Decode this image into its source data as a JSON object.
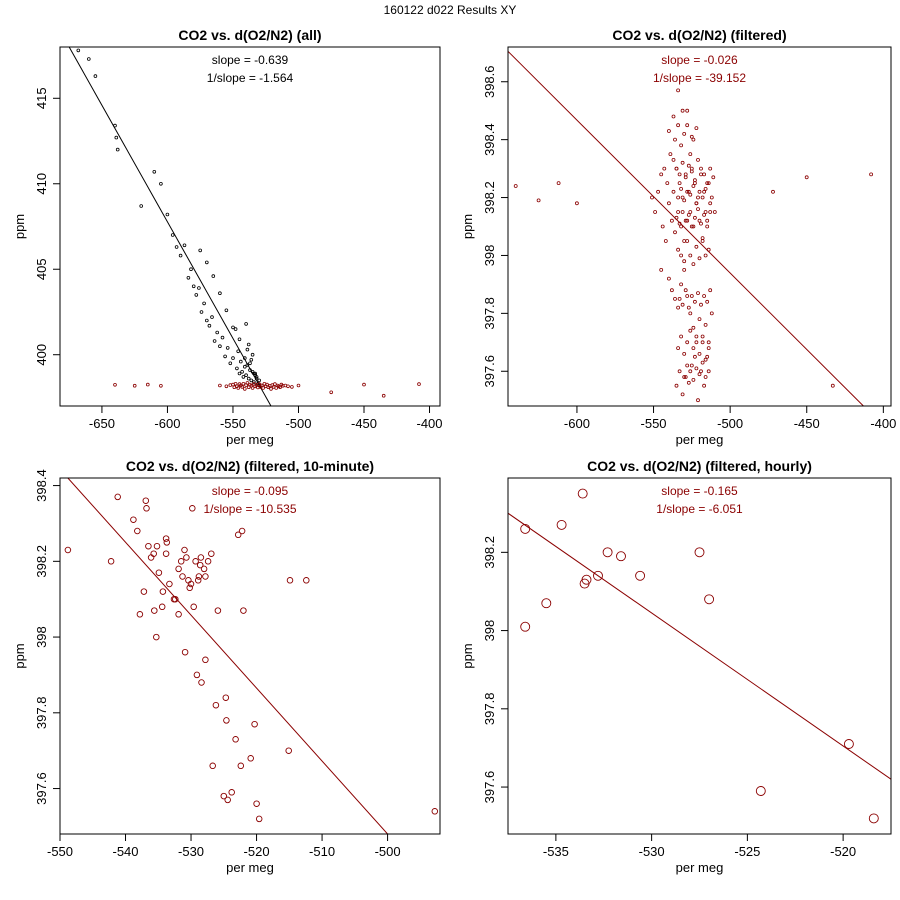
{
  "figure": {
    "suptitle": "160122   d022   Results XY",
    "colors": {
      "all_points": "#000000",
      "filtered": "#8b0000",
      "axis": "#000000"
    }
  },
  "chart_data": [
    {
      "type": "scatter",
      "title": "CO2 vs. d(O2/N2) (all)",
      "xlabel": "per meg",
      "ylabel": "ppm",
      "xlim": [
        -682,
        -392
      ],
      "ylim": [
        397.0,
        418.0
      ],
      "xticks": [
        -650,
        -600,
        -550,
        -500,
        -450,
        -400
      ],
      "yticks": [
        400,
        405,
        410,
        415
      ],
      "annotations": [
        "slope = -0.639",
        "1/slope = -1.564"
      ],
      "annotation_color": "#000000",
      "line_color": "#000000",
      "fit": {
        "x0": -675,
        "x1": -521,
        "y0": 418.0,
        "y1": 397.0
      },
      "point_radius": 1.4,
      "series": [
        {
          "name": "all",
          "color": "#000000",
          "x": [
            -668,
            -660,
            -655,
            -640,
            -639,
            -638,
            -620,
            -610,
            -605,
            -600,
            -596,
            -593,
            -590,
            -587,
            -584,
            -582,
            -580,
            -578,
            -576,
            -574,
            -572,
            -570,
            -568,
            -566,
            -564,
            -562,
            -560,
            -558,
            -556,
            -554,
            -552,
            -550,
            -548,
            -547,
            -546,
            -545,
            -544,
            -543,
            -542,
            -541,
            -540,
            -539,
            -538,
            -537,
            -536,
            -535,
            -534,
            -533,
            -532,
            -531,
            -530,
            -528,
            -540,
            -538,
            -536,
            -534,
            -532,
            -535,
            -537,
            -539,
            -530,
            -533,
            -541,
            -545,
            -550,
            -555,
            -560,
            -565,
            -570,
            -575
          ],
          "y": [
            417.8,
            417.3,
            416.3,
            413.4,
            412.7,
            412.0,
            408.7,
            410.7,
            410.0,
            408.2,
            407.0,
            406.3,
            405.8,
            406.4,
            404.5,
            405.0,
            404.0,
            403.5,
            403.9,
            402.5,
            403.0,
            402.0,
            401.7,
            402.2,
            400.8,
            401.3,
            400.5,
            401.0,
            399.9,
            400.4,
            399.5,
            399.8,
            401.5,
            399.2,
            400.2,
            398.9,
            399.6,
            399.0,
            398.7,
            399.3,
            398.8,
            399.4,
            398.6,
            399.1,
            398.5,
            399.0,
            398.4,
            398.8,
            398.6,
            398.3,
            398.5,
            398.2,
            401.8,
            400.6,
            399.7,
            398.9,
            398.7,
            400.0,
            399.5,
            400.3,
            398.2,
            398.9,
            399.8,
            400.9,
            401.6,
            402.6,
            403.6,
            404.6,
            405.4,
            406.1
          ]
        },
        {
          "name": "filtered",
          "color": "#8b0000",
          "x": [
            -640,
            -625,
            -615,
            -605,
            -560,
            -555,
            -552,
            -550,
            -549,
            -548,
            -547,
            -546,
            -545,
            -544,
            -543,
            -542,
            -541,
            -540,
            -539,
            -538,
            -537,
            -536,
            -535,
            -534,
            -533,
            -532,
            -531,
            -530,
            -529,
            -528,
            -527,
            -526,
            -525,
            -524,
            -523,
            -522,
            -521,
            -520,
            -519,
            -518,
            -517,
            -516,
            -515,
            -514,
            -513,
            -512,
            -510,
            -508,
            -505,
            -500,
            -475,
            -450,
            -435,
            -408
          ],
          "y": [
            398.24,
            398.19,
            398.25,
            398.18,
            398.2,
            398.15,
            398.22,
            398.25,
            398.1,
            398.3,
            398.15,
            398.05,
            398.28,
            398.2,
            398.12,
            398.3,
            398.0,
            398.22,
            398.35,
            398.1,
            398.25,
            398.18,
            398.05,
            398.3,
            398.15,
            398.22,
            398.08,
            398.28,
            398.12,
            398.2,
            398.05,
            398.3,
            398.15,
            398.25,
            398.1,
            398.18,
            398.0,
            398.22,
            398.12,
            398.28,
            398.05,
            398.2,
            398.15,
            398.1,
            398.25,
            398.18,
            398.2,
            398.15,
            398.12,
            398.2,
            397.8,
            398.25,
            397.6,
            398.28
          ]
        }
      ]
    },
    {
      "type": "scatter",
      "title": "CO2 vs. d(O2/N2) (filtered)",
      "xlabel": "per meg",
      "ylabel": "ppm",
      "xlim": [
        -645,
        -395
      ],
      "ylim": [
        397.48,
        398.72
      ],
      "xticks": [
        -600,
        -550,
        -500,
        -450,
        -400
      ],
      "yticks": [
        397.6,
        397.8,
        398.0,
        398.2,
        398.4,
        398.6
      ],
      "annotations": [
        "slope = -0.026",
        "1/slope = -39.152"
      ],
      "annotation_color": "#8b0000",
      "line_color": "#8b0000",
      "fit": {
        "x0": -645,
        "x1": -413,
        "y0": 398.705,
        "y1": 397.48
      },
      "point_radius": 1.5,
      "series": [
        {
          "name": "filtered",
          "color": "#8b0000",
          "x": [
            -640,
            -625,
            -612,
            -600,
            -551,
            -549,
            -547,
            -545,
            -544,
            -543,
            -542,
            -541,
            -540,
            -539,
            -538,
            -537,
            -536,
            -535,
            -534,
            -533,
            -532,
            -531,
            -530,
            -529,
            -528,
            -527,
            -526,
            -525,
            -524,
            -523,
            -522,
            -521,
            -520,
            -519,
            -518,
            -517,
            -516,
            -515,
            -514,
            -513,
            -512,
            -510,
            -545,
            -540,
            -538,
            -536,
            -534,
            -532,
            -530,
            -528,
            -526,
            -524,
            -522,
            -520,
            -518,
            -516,
            -514,
            -512,
            -536,
            -534,
            -532,
            -530,
            -528,
            -526,
            -524,
            -535,
            -533,
            -531,
            -529,
            -527,
            -525,
            -523,
            -521,
            -519,
            -517,
            -515,
            -534,
            -532,
            -530,
            -528,
            -526,
            -524,
            -522,
            -520,
            -518,
            -516,
            -514,
            -537,
            -535,
            -533,
            -531,
            -529,
            -527,
            -525,
            -523,
            -521,
            -519,
            -517,
            -515,
            -513,
            -511,
            -534,
            -532,
            -530,
            -528,
            -526,
            -524,
            -522,
            -520,
            -518,
            -516,
            -514,
            -535,
            -533,
            -531,
            -529,
            -527,
            -525,
            -523,
            -521,
            -519,
            -517,
            -515,
            -513,
            -533,
            -531,
            -529,
            -527,
            -525,
            -523,
            -521,
            -519,
            -517,
            -515,
            -513,
            -534,
            -532,
            -530,
            -528,
            -526,
            -524,
            -522,
            -520,
            -518,
            -516,
            -530,
            -528,
            -526,
            -524,
            -522,
            -520,
            -518,
            -516,
            -514,
            -540,
            -537,
            -534,
            -531,
            -528,
            -525,
            -522,
            -472,
            -450,
            -433,
            -408
          ],
          "y": [
            398.24,
            398.19,
            398.25,
            398.18,
            398.2,
            398.15,
            398.22,
            398.28,
            398.1,
            398.3,
            398.05,
            398.25,
            398.18,
            398.35,
            398.12,
            398.22,
            398.08,
            398.3,
            398.15,
            398.25,
            398.1,
            398.2,
            398.05,
            398.28,
            398.12,
            398.22,
            398.15,
            398.3,
            398.1,
            398.25,
            398.18,
            398.2,
            398.12,
            398.28,
            398.05,
            398.22,
            398.15,
            398.1,
            398.25,
            398.18,
            398.2,
            398.15,
            397.95,
            397.92,
            397.88,
            397.85,
            397.82,
            397.9,
            397.95,
            397.86,
            397.8,
            397.75,
            397.7,
            397.78,
            397.72,
            397.76,
            397.7,
            397.8,
            398.4,
            398.45,
            398.38,
            398.42,
            398.5,
            398.35,
            398.4,
            397.55,
            397.6,
            397.52,
            397.58,
            397.56,
            397.62,
            397.65,
            397.5,
            397.6,
            397.55,
            397.65,
            398.02,
            398.0,
            397.98,
            398.05,
            398.0,
            397.97,
            398.03,
            397.99,
            398.06,
            398.0,
            398.02,
            398.33,
            398.3,
            398.28,
            398.32,
            398.27,
            398.31,
            398.29,
            398.26,
            398.33,
            398.3,
            398.28,
            398.25,
            398.3,
            398.27,
            397.68,
            397.72,
            397.66,
            397.7,
            397.74,
            397.68,
            397.72,
            397.66,
            397.7,
            397.64,
            397.68,
            398.13,
            398.11,
            398.15,
            398.12,
            398.14,
            398.1,
            398.13,
            398.16,
            398.11,
            398.14,
            398.12,
            398.15,
            397.85,
            397.83,
            397.88,
            397.82,
            397.86,
            397.84,
            397.87,
            397.83,
            397.86,
            397.84,
            397.88,
            398.2,
            398.23,
            398.19,
            398.22,
            398.21,
            398.24,
            398.18,
            398.22,
            398.2,
            398.23,
            397.58,
            397.62,
            397.6,
            397.57,
            397.61,
            397.59,
            397.63,
            397.58,
            397.6,
            398.43,
            398.48,
            398.57,
            398.5,
            398.45,
            398.41,
            398.44,
            398.22,
            398.27,
            397.55,
            398.28
          ]
        }
      ]
    },
    {
      "type": "scatter",
      "title": "CO2 vs. d(O2/N2) (filtered, 10-minute)",
      "xlabel": "per meg",
      "ylabel": "ppm",
      "xlim": [
        -550,
        -492
      ],
      "ylim": [
        397.48,
        398.42
      ],
      "xticks": [
        -550,
        -540,
        -530,
        -520,
        -510,
        -500
      ],
      "yticks": [
        397.6,
        397.8,
        398.0,
        398.2,
        398.4
      ],
      "annotations": [
        "slope = -0.095",
        "1/slope = -10.535"
      ],
      "annotation_color": "#8b0000",
      "line_color": "#8b0000",
      "fit": {
        "x0": -548.8,
        "x1": -500.0,
        "y0": 398.42,
        "y1": 397.48
      },
      "point_radius": 2.8,
      "series": [
        {
          "name": "10-minute",
          "color": "#8b0000",
          "x": [
            -548.8,
            -542.2,
            -541.2,
            -538.2,
            -538.8,
            -536.9,
            -536.8,
            -536.5,
            -535.6,
            -535.7,
            -535.2,
            -534.4,
            -534.3,
            -533.8,
            -533.8,
            -533.3,
            -532.6,
            -532.4,
            -531.9,
            -531.9,
            -531.5,
            -531.3,
            -530.9,
            -530.7,
            -530.4,
            -530.0,
            -529.8,
            -529.6,
            -529.3,
            -529.1,
            -528.9,
            -528.8,
            -528.5,
            -528.4,
            -528.0,
            -527.8,
            -527.4,
            -526.7,
            -526.2,
            -525.0,
            -524.6,
            -524.4,
            -523.8,
            -523.2,
            -522.8,
            -522.4,
            -522.2,
            -520.9,
            -520.3,
            -520.0,
            -519.6,
            -515.1,
            -514.9,
            -512.4,
            -492.8,
            -537.2,
            -536.1,
            -534.9,
            -533.7,
            -531.0,
            -530.2,
            -528.6,
            -527.8,
            -526.9,
            -525.9,
            -524.7,
            -522.0,
            -537.8,
            -535.3
          ],
          "y": [
            398.23,
            398.2,
            398.37,
            398.28,
            398.31,
            398.36,
            398.34,
            398.24,
            398.07,
            398.22,
            398.24,
            398.08,
            398.12,
            398.26,
            398.22,
            398.14,
            398.1,
            398.1,
            398.06,
            398.18,
            398.2,
            398.16,
            397.96,
            398.21,
            398.15,
            398.14,
            398.34,
            398.08,
            398.2,
            397.9,
            398.15,
            398.16,
            398.21,
            397.88,
            398.18,
            397.94,
            398.2,
            397.66,
            397.82,
            397.58,
            397.78,
            397.57,
            397.59,
            397.73,
            398.27,
            397.66,
            398.28,
            397.68,
            397.77,
            397.56,
            397.52,
            397.7,
            398.15,
            398.15,
            397.54,
            398.12,
            398.21,
            398.17,
            398.25,
            398.23,
            398.13,
            398.19,
            398.16,
            398.22,
            398.07,
            397.84,
            398.07,
            398.06,
            398.0
          ]
        }
      ]
    },
    {
      "type": "scatter",
      "title": "CO2 vs. d(O2/N2) (filtered, hourly)",
      "xlabel": "per meg",
      "ylabel": "ppm",
      "xlim": [
        -537.5,
        -517.5
      ],
      "ylim": [
        397.48,
        398.39
      ],
      "xticks": [
        -535,
        -530,
        -525,
        -520
      ],
      "yticks": [
        397.6,
        397.8,
        398.0,
        398.2
      ],
      "annotations": [
        "slope = -0.165",
        "1/slope = -6.051"
      ],
      "annotation_color": "#8b0000",
      "line_color": "#8b0000",
      "fit": {
        "x0": -537.5,
        "x1": -517.5,
        "y0": 398.3,
        "y1": 397.62
      },
      "point_radius": 4.5,
      "series": [
        {
          "name": "hourly",
          "color": "#8b0000",
          "x": [
            -536.6,
            -536.6,
            -535.5,
            -534.7,
            -533.6,
            -533.5,
            -533.4,
            -532.8,
            -532.3,
            -531.6,
            -530.6,
            -527.5,
            -527.0,
            -524.3,
            -519.7,
            -518.4
          ],
          "y": [
            398.26,
            398.01,
            398.07,
            398.27,
            398.35,
            398.12,
            398.13,
            398.14,
            398.2,
            398.19,
            398.14,
            398.2,
            398.08,
            397.59,
            397.71,
            397.52
          ]
        }
      ]
    }
  ]
}
